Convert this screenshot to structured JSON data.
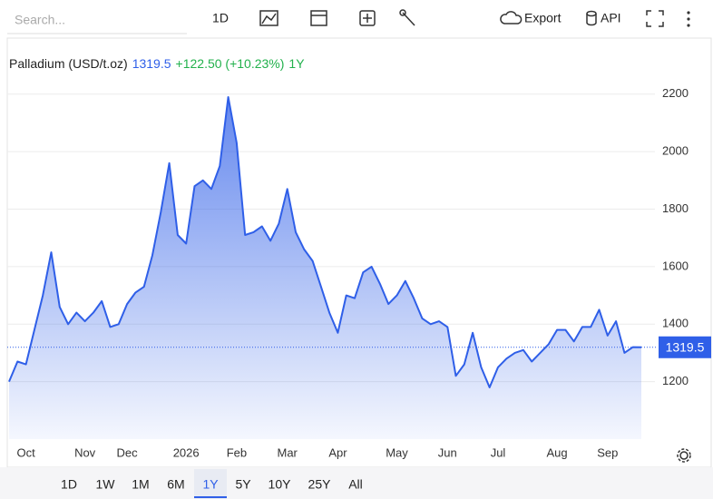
{
  "toolbar": {
    "search_placeholder": "Search...",
    "interval": "1D",
    "export": "Export",
    "api": "API"
  },
  "header": {
    "change": "+122.50 (+10.23%)",
    "period": "1Y"
  },
  "range_buttons": {
    "items": [
      "1D",
      "1W",
      "1M",
      "6M",
      "1Y",
      "5Y",
      "10Y",
      "25Y",
      "All"
    ],
    "selected": "1Y"
  },
  "chart_data": {
    "type": "area",
    "title": "Palladium (USD/t.oz)",
    "categories": [
      null,
      null,
      "Oct",
      null,
      null,
      null,
      null,
      null,
      null,
      "Nov",
      null,
      null,
      null,
      null,
      "Dec",
      null,
      null,
      null,
      null,
      null,
      null,
      "2026",
      null,
      null,
      null,
      null,
      null,
      "Feb",
      null,
      null,
      null,
      null,
      null,
      "Mar",
      null,
      null,
      null,
      null,
      null,
      "Apr",
      null,
      null,
      null,
      null,
      null,
      null,
      "May",
      null,
      null,
      null,
      null,
      null,
      "Jun",
      null,
      null,
      null,
      null,
      null,
      "Jul",
      null,
      null,
      null,
      null,
      null,
      null,
      "Aug",
      null,
      null,
      null,
      null,
      null,
      "Sep",
      null,
      null,
      null,
      null
    ],
    "series": [
      {
        "color": "#2f5fe8",
        "values": [
          1200,
          1270,
          1260,
          1380,
          1500,
          1650,
          1460,
          1400,
          1440,
          1410,
          1440,
          1480,
          1390,
          1400,
          1470,
          1510,
          1530,
          1640,
          1790,
          1960,
          1710,
          1680,
          1880,
          1900,
          1870,
          1950,
          2190,
          2030,
          1710,
          1720,
          1740,
          1690,
          1750,
          1870,
          1720,
          1660,
          1620,
          1530,
          1440,
          1370,
          1500,
          1490,
          1580,
          1600,
          1540,
          1470,
          1500,
          1550,
          1490,
          1420,
          1400,
          1410,
          1390,
          1220,
          1260,
          1370,
          1250,
          1180,
          1250,
          1280,
          1300,
          1310,
          1270,
          1300,
          1330,
          1380,
          1380,
          1340,
          1390,
          1390,
          1450,
          1360,
          1410,
          1300,
          1320,
          1319.5
        ]
      }
    ],
    "ylim": [
      1000,
      2395
    ],
    "yticks": [
      1200,
      1400,
      1600,
      1800,
      2000,
      2200
    ],
    "grid": true
  }
}
